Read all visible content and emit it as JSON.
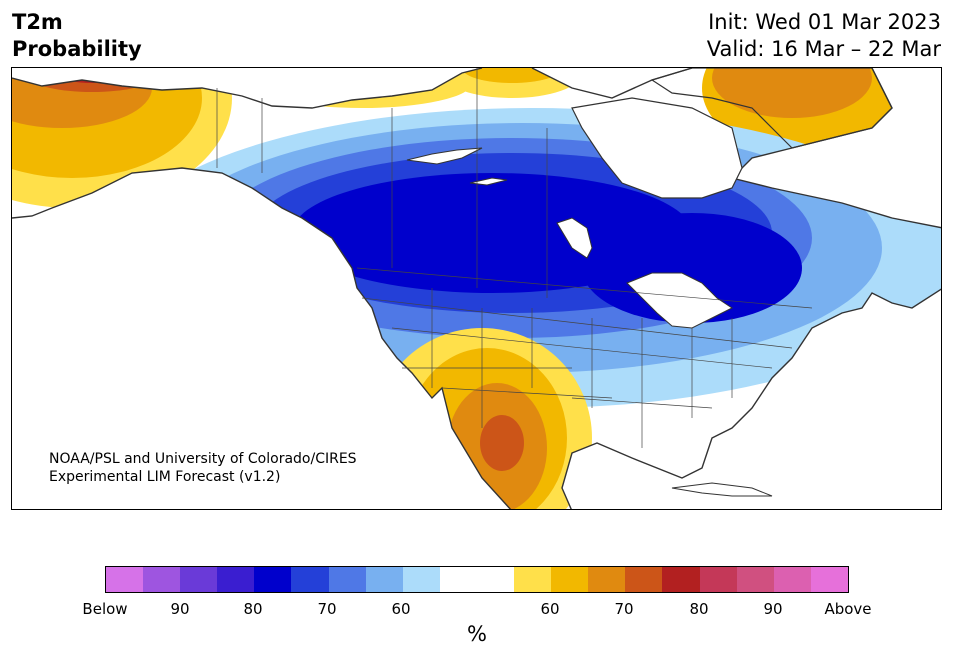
{
  "header": {
    "title_line1": "T2m",
    "title_line2": "Probability",
    "init": "Init: Wed 01 Mar 2023",
    "valid": "Valid: 16 Mar – 22 Mar"
  },
  "credit": {
    "line1": "NOAA/PSL and University of Colorado/CIRES",
    "line2": "Experimental LIM Forecast (v1.2)"
  },
  "colorbar": {
    "colors": [
      "#d672e8",
      "#9e55e0",
      "#6a3ad8",
      "#3a1ed0",
      "#0000cc",
      "#2440d8",
      "#4f78e6",
      "#78b0f0",
      "#acdcfa",
      "#ffffff",
      "#ffffff",
      "#ffe04a",
      "#f2b800",
      "#e08a10",
      "#cc5518",
      "#b22020",
      "#c43858",
      "#d05080",
      "#dc60b0",
      "#e670da"
    ],
    "ticks": [
      "Below",
      "90",
      "80",
      "70",
      "60",
      "60",
      "70",
      "80",
      "90",
      "Above"
    ],
    "unit": "%"
  }
}
